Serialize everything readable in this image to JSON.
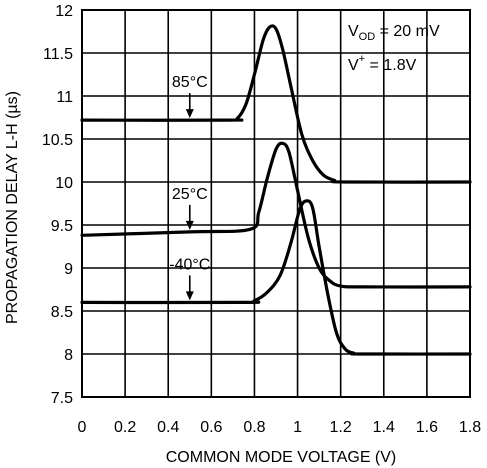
{
  "chart_data": {
    "type": "line",
    "xlabel": "COMMON MODE VOLTAGE (V)",
    "ylabel": "PROPAGATION DELAY L-H (µs)",
    "xlim": [
      0,
      1.8
    ],
    "ylim": [
      7.5,
      12
    ],
    "xticks": [
      "0",
      "0.2",
      "0.4",
      "0.6",
      "0.8",
      "1",
      "1.2",
      "1.4",
      "1.6",
      "1.8"
    ],
    "yticks": [
      "7.5",
      "8",
      "8.5",
      "9",
      "9.5",
      "10",
      "10.5",
      "11",
      "11.5",
      "12"
    ],
    "grid": true,
    "conditions": {
      "vod_main": "V",
      "vod_sub": "OD",
      "vod_rest": " = 20 mV",
      "vplus_main": "V",
      "vplus_sup": "+",
      "vplus_rest": " = 1.8V"
    },
    "series": [
      {
        "name": "85°C",
        "points": [
          [
            0,
            10.72
          ],
          [
            0.68,
            10.72
          ],
          [
            0.72,
            10.74
          ],
          [
            0.76,
            10.9
          ],
          [
            0.8,
            11.25
          ],
          [
            0.84,
            11.65
          ],
          [
            0.87,
            11.8
          ],
          [
            0.9,
            11.78
          ],
          [
            0.93,
            11.55
          ],
          [
            0.97,
            11.1
          ],
          [
            1.02,
            10.55
          ],
          [
            1.07,
            10.25
          ],
          [
            1.12,
            10.08
          ],
          [
            1.17,
            10.02
          ],
          [
            1.22,
            10.0
          ],
          [
            1.8,
            10.0
          ]
        ]
      },
      {
        "name": "25°C",
        "points": [
          [
            0,
            9.38
          ],
          [
            0.5,
            9.42
          ],
          [
            0.78,
            9.45
          ],
          [
            0.82,
            9.65
          ],
          [
            0.86,
            10.05
          ],
          [
            0.9,
            10.38
          ],
          [
            0.93,
            10.45
          ],
          [
            0.96,
            10.35
          ],
          [
            1.0,
            9.9
          ],
          [
            1.05,
            9.35
          ],
          [
            1.1,
            9.0
          ],
          [
            1.15,
            8.85
          ],
          [
            1.2,
            8.79
          ],
          [
            1.3,
            8.78
          ],
          [
            1.8,
            8.78
          ]
        ]
      },
      {
        "name": "-40°C",
        "points": [
          [
            0,
            8.6
          ],
          [
            0.75,
            8.6
          ],
          [
            0.8,
            8.62
          ],
          [
            0.86,
            8.72
          ],
          [
            0.92,
            8.92
          ],
          [
            0.97,
            9.3
          ],
          [
            1.01,
            9.68
          ],
          [
            1.04,
            9.78
          ],
          [
            1.07,
            9.7
          ],
          [
            1.1,
            9.25
          ],
          [
            1.14,
            8.7
          ],
          [
            1.18,
            8.25
          ],
          [
            1.22,
            8.06
          ],
          [
            1.26,
            8.01
          ],
          [
            1.3,
            8.0
          ],
          [
            1.8,
            8.0
          ]
        ]
      }
    ],
    "annotations": [
      {
        "text": "85°C",
        "x": 0.5,
        "y": 10.72
      },
      {
        "text": "25°C",
        "x": 0.5,
        "y": 9.42
      },
      {
        "text": "-40°C",
        "x": 0.5,
        "y": 8.6
      }
    ]
  }
}
